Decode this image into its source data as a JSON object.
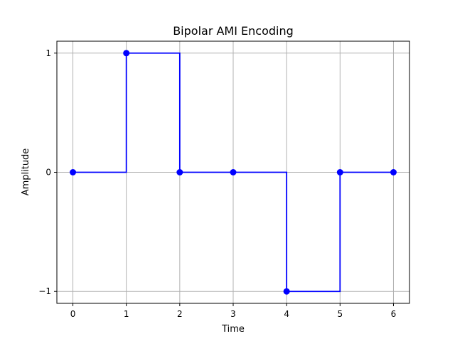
{
  "chart_data": {
    "type": "line",
    "title": "Bipolar AMI Encoding",
    "xlabel": "Time",
    "ylabel": "Amplitude",
    "x": [
      0,
      1,
      2,
      3,
      4,
      5,
      6
    ],
    "series": [
      {
        "values": [
          0,
          1,
          0,
          0,
          -1,
          0,
          0
        ],
        "color": "#0000ff",
        "drawstyle": "steps-post",
        "marker": "circle"
      }
    ],
    "xlim": [
      -0.3,
      6.3
    ],
    "ylim": [
      -1.1,
      1.1
    ],
    "xticks": [
      0,
      1,
      2,
      3,
      4,
      5,
      6
    ],
    "xtick_labels": [
      "0",
      "1",
      "2",
      "3",
      "4",
      "5",
      "6"
    ],
    "yticks": [
      -1,
      0,
      1
    ],
    "ytick_labels": [
      "−1",
      "0",
      "1"
    ],
    "grid": true
  }
}
